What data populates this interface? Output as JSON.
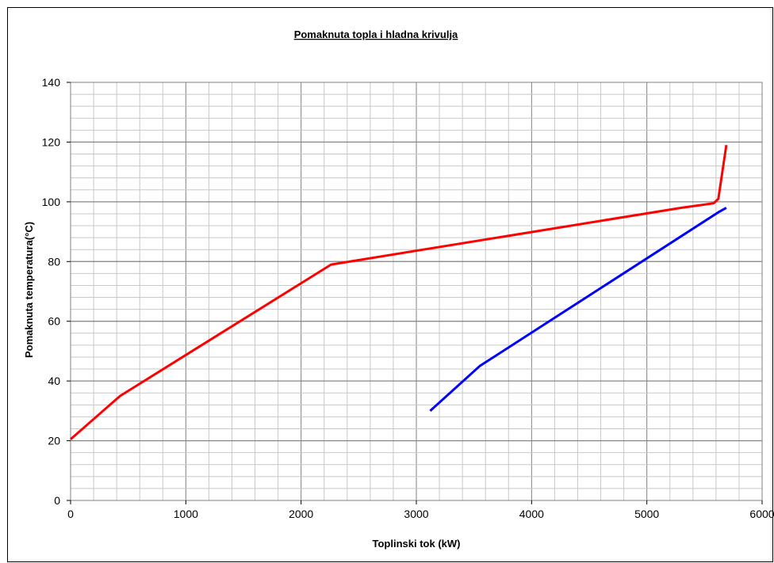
{
  "chart_data": {
    "type": "line",
    "title": "Pomaknuta topla i hladna krivulja",
    "xlabel": "Toplinski tok (kW)",
    "ylabel": "Pomaknuta temperatura(°C)",
    "xlim": [
      0,
      6000
    ],
    "ylim": [
      0,
      140
    ],
    "x_ticks": [
      0,
      1000,
      2000,
      3000,
      4000,
      5000,
      6000
    ],
    "y_ticks": [
      0,
      20,
      40,
      60,
      80,
      100,
      120,
      140
    ],
    "x_major_grid_step": 1000,
    "x_minor_grid_step": 200,
    "y_minor_grid_step": 4,
    "grid": true,
    "series": [
      {
        "color": "#ff0000",
        "points": [
          [
            0,
            20.5
          ],
          [
            430,
            35
          ],
          [
            2260,
            79
          ],
          [
            5300,
            98
          ],
          [
            5580,
            99.5
          ],
          [
            5620,
            101
          ],
          [
            5690,
            119
          ]
        ]
      },
      {
        "color": "#0000ff",
        "points": [
          [
            3120,
            30
          ],
          [
            3550,
            45
          ],
          [
            5620,
            96.5
          ],
          [
            5690,
            98
          ]
        ]
      }
    ]
  }
}
